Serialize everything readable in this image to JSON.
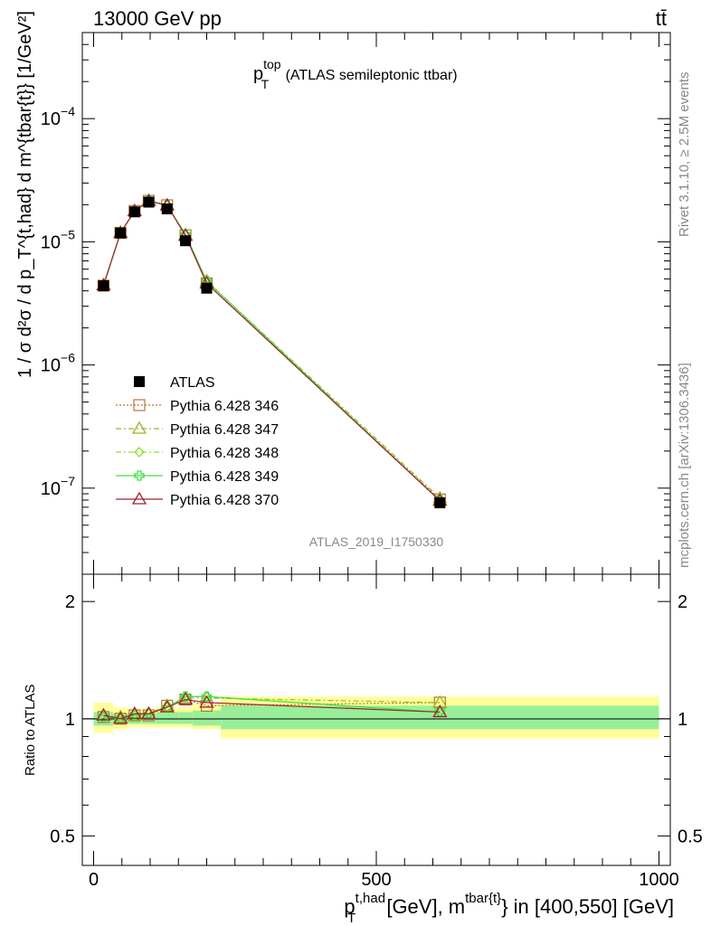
{
  "header": {
    "left": "13000 GeV pp",
    "right": "tt̄"
  },
  "side": {
    "rivet": "Rivet 3.1.10, ≥ 2.5M events",
    "mcplots": "mcplots.cern.ch [arXiv:1306.3436]"
  },
  "watermark": "ATLAS_2019_I1750330",
  "colors": {
    "atlas": "#000000",
    "p346": "#b07838",
    "p347": "#a0b428",
    "p348": "#90e038",
    "p349": "#40e040",
    "p370": "#a02030",
    "band_outer": "#ffff99",
    "band_inner": "#99ee99"
  },
  "chart_data": [
    {
      "type": "line",
      "panel": "main",
      "title_main": "p",
      "title_sup": "top",
      "title_sub": "T",
      "title_rest": " (ATLAS semileptonic ttbar)",
      "ylabel": "1 / σ d²σ / d p_T^{t,had} d m^{tbar{t}} [1/GeV²]",
      "yscale": "log",
      "ylim": [
        2e-08,
        0.0005
      ],
      "xlim": [
        -20,
        1020
      ],
      "yticks": [
        {
          "sup": "−4",
          "value": 0.0001
        },
        {
          "sup": "−5",
          "value": 1e-05
        },
        {
          "sup": "−6",
          "value": 1e-06
        },
        {
          "sup": "−7",
          "value": 1e-07
        }
      ],
      "x": [
        17.5,
        47.5,
        72.5,
        97.5,
        130,
        162.5,
        200,
        612.5
      ],
      "series": [
        {
          "name": "ATLAS",
          "values": [
            4.4e-06,
            1.18e-05,
            1.75e-05,
            2.1e-05,
            1.85e-05,
            1.02e-05,
            4.2e-06,
            7.6e-08
          ]
        },
        {
          "name": "Pythia 6.428 346",
          "values": [
            4.4e-06,
            1.18e-05,
            1.78e-05,
            2.15e-05,
            1.98e-05,
            1.13e-05,
            4.6e-06,
            8.1e-08
          ]
        },
        {
          "name": "Pythia 6.428 347",
          "values": [
            4.45e-06,
            1.19e-05,
            1.78e-05,
            2.17e-05,
            1.98e-05,
            1.14e-05,
            4.8e-06,
            8.3e-08
          ]
        },
        {
          "name": "Pythia 6.428 348",
          "values": [
            4.4e-06,
            1.18e-05,
            1.77e-05,
            2.16e-05,
            1.97e-05,
            1.15e-05,
            4.8e-06,
            7.9e-08
          ]
        },
        {
          "name": "Pythia 6.428 349",
          "values": [
            4.4e-06,
            1.18e-05,
            1.77e-05,
            2.16e-05,
            1.97e-05,
            1.15e-05,
            4.8e-06,
            7.9e-08
          ]
        },
        {
          "name": "Pythia 6.428 370",
          "values": [
            4.45e-06,
            1.18e-05,
            1.78e-05,
            2.14e-05,
            1.98e-05,
            1.12e-05,
            4.6e-06,
            7.9e-08
          ]
        }
      ]
    },
    {
      "type": "line",
      "panel": "ratio",
      "ylabel": "Ratio to ATLAS",
      "yscale": "log",
      "ylim": [
        0.42,
        2.35
      ],
      "xlim": [
        -20,
        1020
      ],
      "yticks": [
        {
          "label": "2",
          "value": 2
        },
        {
          "label": "1",
          "value": 1
        },
        {
          "label": "0.5",
          "value": 0.5
        }
      ],
      "xticks": [
        {
          "label": "0",
          "value": 0
        },
        {
          "label": "500",
          "value": 500
        },
        {
          "label": "1000",
          "value": 1000
        }
      ],
      "xlabel_main": "p",
      "xlabel_sup": "t,had",
      "xlabel_sub": "T",
      "xlabel_mid": " [GeV], m",
      "xlabel_sup2": "tbar{t}",
      "xlabel_rest": "} in [400,550] [GeV]",
      "bins": [
        0,
        35,
        60,
        85,
        110,
        150,
        175,
        225,
        1000
      ],
      "band_inner": [
        [
          0.96,
          1.04
        ],
        [
          0.97,
          1.03
        ],
        [
          0.97,
          1.03
        ],
        [
          0.97,
          1.03
        ],
        [
          0.97,
          1.04
        ],
        [
          0.97,
          1.04
        ],
        [
          0.96,
          1.05
        ],
        [
          0.94,
          1.08
        ]
      ],
      "band_outer": [
        [
          0.92,
          1.1
        ],
        [
          0.94,
          1.07
        ],
        [
          0.95,
          1.06
        ],
        [
          0.95,
          1.06
        ],
        [
          0.95,
          1.07
        ],
        [
          0.95,
          1.07
        ],
        [
          0.94,
          1.09
        ],
        [
          0.89,
          1.14
        ]
      ],
      "x": [
        17.5,
        47.5,
        72.5,
        97.5,
        130,
        162.5,
        200,
        612.5
      ],
      "series": [
        {
          "name": "Pythia 6.428 346",
          "values": [
            1.01,
            1.0,
            1.02,
            1.02,
            1.08,
            1.12,
            1.08,
            1.1
          ]
        },
        {
          "name": "Pythia 6.428 347",
          "values": [
            1.02,
            1.01,
            1.02,
            1.03,
            1.08,
            1.13,
            1.13,
            1.1
          ]
        },
        {
          "name": "Pythia 6.428 348",
          "values": [
            1.01,
            1.0,
            1.02,
            1.03,
            1.07,
            1.14,
            1.14,
            1.04
          ]
        },
        {
          "name": "Pythia 6.428 349",
          "values": [
            1.01,
            1.0,
            1.02,
            1.03,
            1.07,
            1.14,
            1.14,
            1.04
          ]
        },
        {
          "name": "Pythia 6.428 370",
          "values": [
            1.02,
            1.0,
            1.03,
            1.03,
            1.07,
            1.12,
            1.1,
            1.04
          ]
        }
      ]
    }
  ]
}
